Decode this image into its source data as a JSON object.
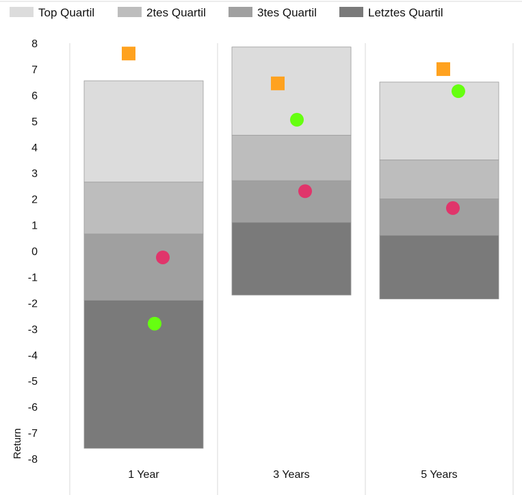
{
  "chart_data": {
    "type": "bar",
    "subtype": "floating-stacked-bar-with-markers",
    "categories": [
      "1 Year",
      "3 Years",
      "5 Years"
    ],
    "ylabel": "Return",
    "xlabel": "",
    "ylim": [
      -8,
      8
    ],
    "yticks": [
      8,
      7,
      6,
      5,
      4,
      3,
      2,
      1,
      0,
      -1,
      -2,
      -3,
      -4,
      -5,
      -6,
      -7,
      -8
    ],
    "grid": "vertical category separators",
    "legend_position": "top",
    "series": [
      {
        "name": "Top Quartil",
        "color": "#dcdcdc",
        "from": [
          2.65,
          4.45,
          3.5
        ],
        "to": [
          6.55,
          7.85,
          6.5
        ]
      },
      {
        "name": "2tes Quartil",
        "color": "#bdbdbd",
        "from": [
          0.65,
          2.7,
          2.0
        ],
        "to": [
          2.65,
          4.45,
          3.5
        ]
      },
      {
        "name": "3tes Quartil",
        "color": "#a0a0a0",
        "from": [
          -1.9,
          1.1,
          0.6
        ],
        "to": [
          0.65,
          2.7,
          2.0
        ]
      },
      {
        "name": "Letztes Quartil",
        "color": "#7a7a7a",
        "from": [
          -7.6,
          -1.7,
          -1.85
        ],
        "to": [
          -1.9,
          1.1,
          0.6
        ]
      }
    ],
    "markers": [
      {
        "shape": "square",
        "color": "#ffa21f",
        "values": [
          7.6,
          6.45,
          7.0
        ]
      },
      {
        "shape": "circle",
        "color": "#66ff10",
        "values": [
          -2.8,
          5.05,
          6.15
        ]
      },
      {
        "shape": "circle",
        "color": "#e0356b",
        "values": [
          -0.25,
          2.3,
          1.65
        ]
      }
    ]
  }
}
